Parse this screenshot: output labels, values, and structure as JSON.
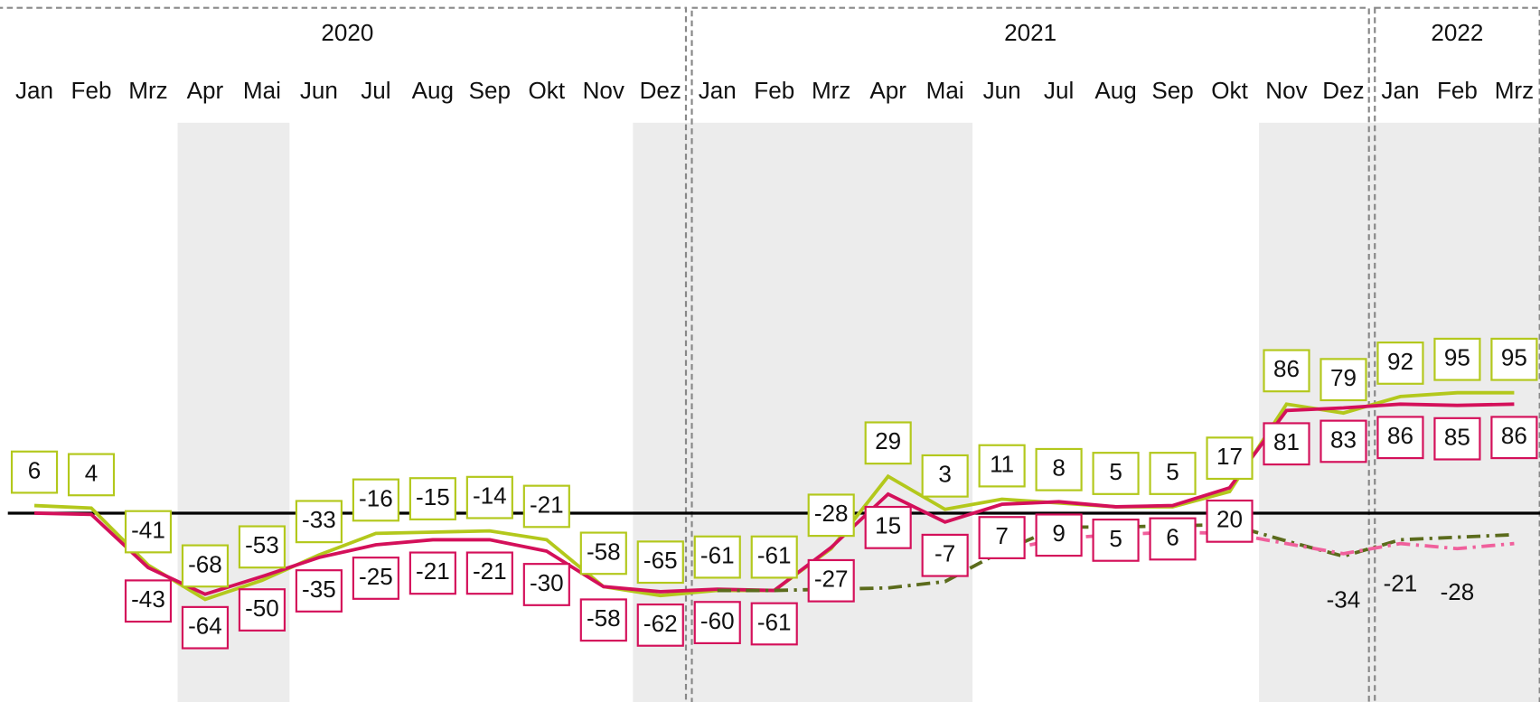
{
  "chart_data": {
    "type": "line",
    "categories": [
      "Jan",
      "Feb",
      "Mrz",
      "Apr",
      "Mai",
      "Jun",
      "Jul",
      "Aug",
      "Sep",
      "Okt",
      "Nov",
      "Dez",
      "Jan",
      "Feb",
      "Mrz",
      "Apr",
      "Mai",
      "Jun",
      "Jul",
      "Aug",
      "Sep",
      "Okt",
      "Nov",
      "Dez",
      "Jan",
      "Feb",
      "Mrz"
    ],
    "years": [
      {
        "label": "2020",
        "start": 0,
        "count": 12
      },
      {
        "label": "2021",
        "start": 12,
        "count": 12
      },
      {
        "label": "2022",
        "start": 24,
        "count": 3
      }
    ],
    "shaded_ranges": [
      [
        3,
        4
      ],
      [
        11,
        16
      ],
      [
        22,
        26
      ]
    ],
    "ylim": [
      -149,
      308
    ],
    "series": [
      {
        "color": "#b3c81c",
        "style": "solid",
        "boxed": true,
        "label_side": "above",
        "values": [
          6,
          4,
          -41,
          -68,
          -53,
          -33,
          -16,
          -15,
          -14,
          -21,
          -58,
          -65,
          -61,
          -61,
          -28,
          29,
          3,
          11,
          8,
          5,
          5,
          17,
          86,
          79,
          92,
          95,
          95
        ]
      },
      {
        "color": "#d4105a",
        "style": "solid",
        "boxed": true,
        "label_side": "below",
        "values": [
          0,
          -1,
          -43,
          -64,
          -50,
          -35,
          -25,
          -21,
          -21,
          -30,
          -58,
          -62,
          -60,
          -61,
          -27,
          15,
          -7,
          7,
          9,
          5,
          6,
          20,
          81,
          83,
          86,
          85,
          86
        ],
        "value_labels": [
          null,
          null,
          "-43",
          "-64",
          "-50",
          "-35",
          "-25",
          "-21",
          "-21",
          "-30",
          "-58",
          "-62",
          "-60",
          "-61",
          "-27",
          "15",
          "-7",
          "7",
          "9",
          "5",
          "6",
          "20",
          "81",
          "83",
          "86",
          "85",
          "86"
        ]
      },
      {
        "color": "#5b6b1c",
        "style": "dashdot",
        "boxed": false,
        "label_side": "below",
        "values": [
          null,
          null,
          null,
          null,
          null,
          null,
          null,
          null,
          null,
          null,
          null,
          null,
          -61,
          -61,
          -60,
          -59,
          -54,
          -30,
          -11,
          -11,
          -10,
          -9,
          -22,
          -34,
          -21,
          -19,
          -17
        ],
        "value_labels": [
          null,
          null,
          null,
          null,
          null,
          null,
          null,
          null,
          null,
          null,
          null,
          null,
          null,
          null,
          null,
          null,
          null,
          null,
          null,
          null,
          null,
          null,
          null,
          "-34",
          "-21",
          null,
          null
        ]
      },
      {
        "color": "#f0609c",
        "style": "dashdot",
        "boxed": false,
        "label_side": "below",
        "values": [
          null,
          null,
          null,
          null,
          null,
          null,
          null,
          null,
          null,
          null,
          null,
          null,
          null,
          null,
          null,
          null,
          null,
          -30,
          -20,
          -17,
          -15,
          -16,
          -24,
          -32,
          -24,
          -28,
          -24
        ],
        "value_labels": [
          null,
          null,
          null,
          null,
          null,
          null,
          null,
          null,
          null,
          null,
          null,
          null,
          null,
          null,
          null,
          null,
          null,
          null,
          null,
          null,
          null,
          null,
          null,
          null,
          null,
          "-28",
          null
        ]
      }
    ]
  }
}
